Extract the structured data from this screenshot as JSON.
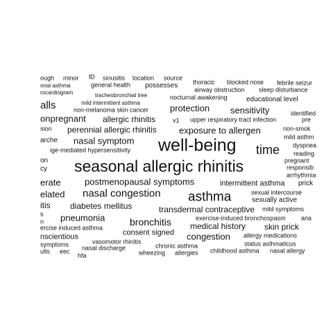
{
  "cloud": {
    "text_color": "#111111",
    "background": "#ffffff",
    "words": [
      {
        "text": "ough"
      },
      {
        "text": "minor"
      },
      {
        "text": "t0"
      },
      {
        "text": "sinusitis"
      },
      {
        "text": "location"
      },
      {
        "text": "source"
      },
      {
        "text": "thoracic"
      },
      {
        "text": "blocked nose"
      },
      {
        "text": "febrile seizur"
      },
      {
        "text": "onal asthma"
      },
      {
        "text": "general health"
      },
      {
        "text": "possesses"
      },
      {
        "text": "airway obstruction"
      },
      {
        "text": "sleep disturbance"
      },
      {
        "text": "rocardiogram"
      },
      {
        "text": "tracheobronchial tree"
      },
      {
        "text": "nocturnal awakening"
      },
      {
        "text": "educational level"
      },
      {
        "text": "mild intermittent asthma"
      },
      {
        "text": "alls"
      },
      {
        "text": "protection"
      },
      {
        "text": "sensitivity"
      },
      {
        "text": "non-melanoma skin cancer"
      },
      {
        "text": "identified"
      },
      {
        "text": "onpregnant"
      },
      {
        "text": "allergic rhinitis"
      },
      {
        "text": "v1"
      },
      {
        "text": "upper respiratory tract infection"
      },
      {
        "text": "pre"
      },
      {
        "text": "sion"
      },
      {
        "text": "perennial allergic rhinitis"
      },
      {
        "text": "exposure to allergen"
      },
      {
        "text": "non-smok"
      },
      {
        "text": "mild asthm"
      },
      {
        "text": "arche"
      },
      {
        "text": "nasal symptom"
      },
      {
        "text": "well-being"
      },
      {
        "text": "dyspnea"
      },
      {
        "text": "time"
      },
      {
        "text": "reading"
      },
      {
        "text": "ige-mediated hypersensitivity"
      },
      {
        "text": "on"
      },
      {
        "text": "pregnant"
      },
      {
        "text": "cy"
      },
      {
        "text": "seasonal allergic rhinitis"
      },
      {
        "text": "responsib"
      },
      {
        "text": "arrhythmia"
      },
      {
        "text": "erate"
      },
      {
        "text": "postmenopausal symptoms"
      },
      {
        "text": "intermittent asthma"
      },
      {
        "text": "prick"
      },
      {
        "text": "elated"
      },
      {
        "text": "nasal congestion"
      },
      {
        "text": "asthma"
      },
      {
        "text": "sexual intercourse"
      },
      {
        "text": "itis"
      },
      {
        "text": "diabetes mellitus"
      },
      {
        "text": "sexually active"
      },
      {
        "text": "transdermal contraceptive"
      },
      {
        "text": "mild symptoms"
      },
      {
        "text": "s"
      },
      {
        "text": "pneumonia"
      },
      {
        "text": "exercise-induced bronchospasm"
      },
      {
        "text": "aria"
      },
      {
        "text": "n"
      },
      {
        "text": "bronchitis"
      },
      {
        "text": "medical history"
      },
      {
        "text": "skin prick"
      },
      {
        "text": "ercise induced asthma"
      },
      {
        "text": "consent signed"
      },
      {
        "text": "congestion"
      },
      {
        "text": "allergy medications"
      },
      {
        "text": "nscientious"
      },
      {
        "text": "vasomotor rhinitis"
      },
      {
        "text": "status asthmaticus"
      },
      {
        "text": "symptoms"
      },
      {
        "text": "nasal discharge"
      },
      {
        "text": "chronic asthma"
      },
      {
        "text": "childhood asthma"
      },
      {
        "text": "nasal allergy"
      },
      {
        "text": "ults"
      },
      {
        "text": "eec"
      },
      {
        "text": "wheezing"
      },
      {
        "text": "allergies"
      },
      {
        "text": "hfa"
      }
    ]
  }
}
